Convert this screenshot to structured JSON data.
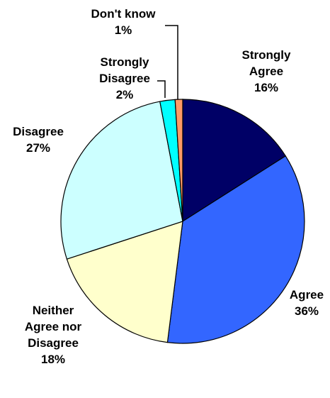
{
  "chart_data": {
    "type": "pie",
    "slices": [
      {
        "label": "Strongly Agree",
        "value": 16,
        "pct": "16%",
        "color": "#000066"
      },
      {
        "label": "Agree",
        "value": 36,
        "pct": "36%",
        "color": "#3366ff"
      },
      {
        "label": "Neither Agree nor Disagree",
        "value": 18,
        "pct": "18%",
        "color": "#ffffcc"
      },
      {
        "label": "Disagree",
        "value": 27,
        "pct": "27%",
        "color": "#ccffff"
      },
      {
        "label": "Strongly Disagree",
        "value": 2,
        "pct": "2%",
        "color": "#00ffff"
      },
      {
        "label": "Don't know",
        "value": 1,
        "pct": "1%",
        "color": "#ff9966"
      }
    ],
    "label_lines": {
      "strongly_agree": [
        "Strongly",
        "Agree"
      ],
      "agree": [
        "Agree"
      ],
      "neither": [
        "Neither",
        "Agree nor",
        "Disagree"
      ],
      "disagree": [
        "Disagree"
      ],
      "strongly_disagree": [
        "Strongly",
        "Disagree"
      ],
      "dont_know": [
        "Don't know"
      ]
    }
  }
}
